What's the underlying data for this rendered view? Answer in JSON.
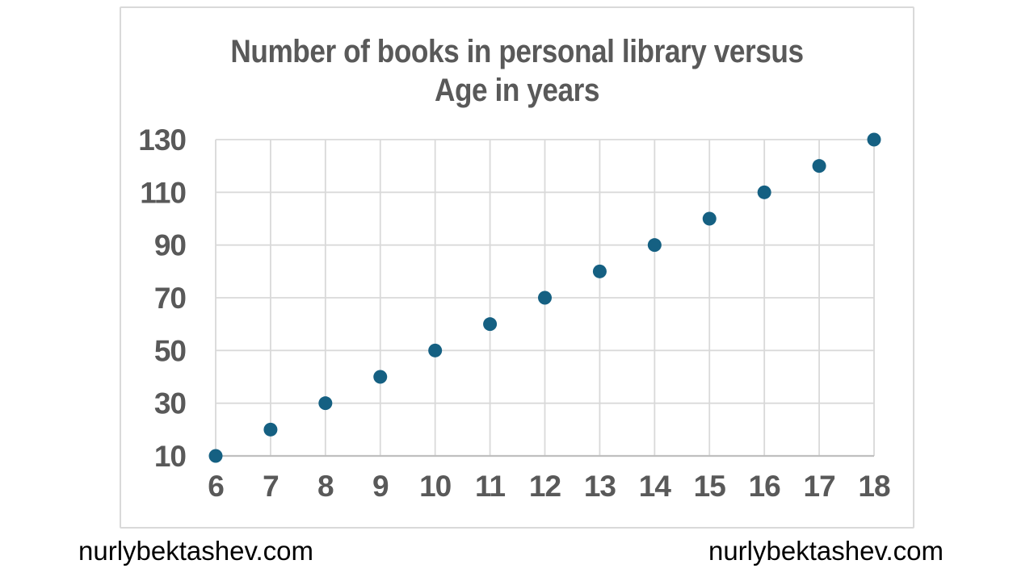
{
  "page": {
    "watermark_left": "nurlybektashev.com",
    "watermark_right": "nurlybektashev.com"
  },
  "chart_data": {
    "type": "scatter",
    "title": "Number of books in personal library versus Age in years",
    "title_line1": "Number of books in personal library versus",
    "title_line2": "Age in years",
    "xlabel": "Age in years",
    "ylabel": "Number of books in personal library",
    "x": [
      6,
      7,
      8,
      9,
      10,
      11,
      12,
      13,
      14,
      15,
      16,
      17,
      18
    ],
    "y": [
      10,
      20,
      30,
      40,
      50,
      60,
      70,
      80,
      90,
      100,
      110,
      120,
      130
    ],
    "xlim": [
      6,
      18
    ],
    "ylim": [
      10,
      130
    ],
    "x_tick_interval": 1,
    "y_tick_interval": 20,
    "x_ticks": [
      6,
      7,
      8,
      9,
      10,
      11,
      12,
      13,
      14,
      15,
      16,
      17,
      18
    ],
    "y_ticks": [
      10,
      30,
      50,
      70,
      90,
      110,
      130
    ],
    "grid": "on",
    "legend": "none",
    "marker": "circle",
    "colors": {
      "marker": "#156082",
      "gridline": "#D9D9D9",
      "axis_line": "#BFBFBF",
      "text": "#595959",
      "chart_border": "#D9D9D9",
      "watermark_text": "#000000"
    }
  }
}
